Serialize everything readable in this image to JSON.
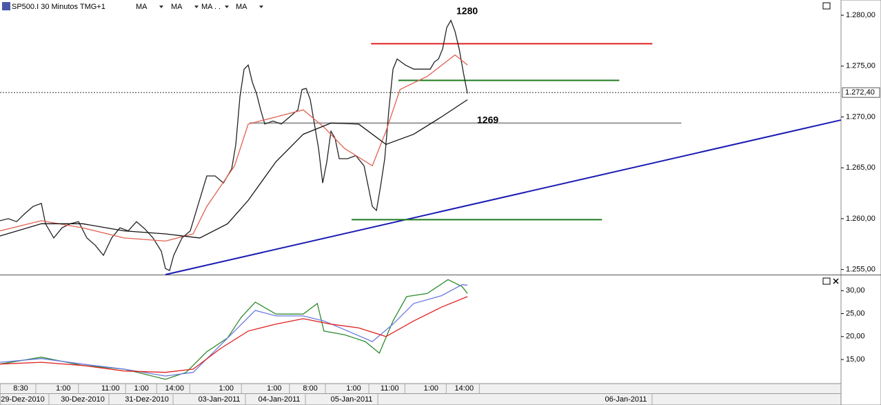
{
  "chart_data": [
    {
      "type": "line",
      "title": "SP500.I 30 Minutos TMG+1",
      "indicators": [
        {
          "name": "MA",
          "color": "#2a2ab8"
        },
        {
          "name": "MA",
          "color": "#e07040"
        },
        {
          "name": "MA . .",
          "color": "#d02020"
        },
        {
          "name": "MA",
          "color": "#000000"
        }
      ],
      "xlim": [
        0,
        203.3
      ],
      "ylim": [
        1254.5,
        1281.5
      ],
      "grid": false,
      "yticks": [
        {
          "value": 1255,
          "label": "1.255,00"
        },
        {
          "value": 1260,
          "label": "1.260,00"
        },
        {
          "value": 1265,
          "label": "1.265,00"
        },
        {
          "value": 1270,
          "label": "1.270,00"
        },
        {
          "value": 1275,
          "label": "1.275,00"
        },
        {
          "value": 1280,
          "label": "1.280,00"
        }
      ],
      "last_price": {
        "value": 1272.4,
        "label": "1.272,40"
      },
      "annotations": [
        1280,
        1269
      ],
      "series": [
        {
          "color": "#222222",
          "x": [
            0,
            2,
            4,
            6,
            8,
            10,
            11,
            13,
            15,
            17,
            19,
            21,
            23,
            25,
            27,
            29,
            31,
            33,
            35,
            37,
            39,
            40,
            41,
            42,
            44,
            46,
            48,
            50,
            52,
            54,
            56,
            57,
            58,
            59,
            60,
            61,
            62,
            63,
            64,
            66,
            68,
            70,
            72,
            73,
            74,
            75,
            76,
            77,
            78,
            79,
            80,
            81,
            82,
            84,
            86,
            88,
            89,
            90,
            91,
            92,
            93,
            94,
            95,
            96,
            97,
            98,
            100,
            102,
            104,
            105,
            106,
            107,
            108,
            109,
            110,
            111,
            112,
            113
          ],
          "values": [
            1259.8,
            1260.0,
            1259.7,
            1260.5,
            1261.2,
            1261.5,
            1259.5,
            1258.1,
            1259.1,
            1259.5,
            1259.7,
            1258.1,
            1257.4,
            1256.4,
            1258.1,
            1259.1,
            1258.8,
            1259.7,
            1259.0,
            1258.1,
            1256.8,
            1255.1,
            1254.9,
            1256.4,
            1258.1,
            1258.8,
            1261.5,
            1264.2,
            1264.2,
            1263.5,
            1264.9,
            1267.3,
            1272.0,
            1274.7,
            1275.1,
            1273.4,
            1272.3,
            1270.7,
            1269.3,
            1269.6,
            1269.3,
            1270.0,
            1270.7,
            1272.7,
            1272.8,
            1271.7,
            1269.3,
            1266.9,
            1263.5,
            1265.6,
            1268.6,
            1267.9,
            1265.9,
            1265.9,
            1266.2,
            1265.2,
            1263.2,
            1261.2,
            1260.8,
            1263.2,
            1265.9,
            1270.7,
            1274.7,
            1275.7,
            1275.4,
            1275.1,
            1274.7,
            1274.7,
            1274.7,
            1275.4,
            1275.7,
            1276.7,
            1278.8,
            1279.5,
            1278.4,
            1276.7,
            1274.4,
            1272.3
          ]
        },
        {
          "name": "MA",
          "color": "#e06050",
          "x": [
            0,
            10,
            20,
            30,
            40,
            46.7,
            50,
            56.7,
            60,
            66.7,
            73.3,
            78.3,
            83.3,
            90,
            93.3,
            96.7,
            103.3,
            110,
            113
          ],
          "values": [
            1258.8,
            1259.8,
            1259.1,
            1258.1,
            1257.8,
            1258.5,
            1261.2,
            1265.2,
            1269.3,
            1270.0,
            1270.7,
            1269.0,
            1266.9,
            1265.2,
            1268.6,
            1272.7,
            1274.0,
            1276.1,
            1275.1
          ]
        },
        {
          "name": "MA",
          "color": "#111111",
          "x": [
            0,
            10,
            20,
            30,
            40,
            48.3,
            55,
            60,
            66.7,
            73.3,
            80,
            86.7,
            93.3,
            100,
            106.7,
            113
          ],
          "values": [
            1258.3,
            1259.5,
            1259.5,
            1258.8,
            1258.5,
            1258.1,
            1259.5,
            1261.8,
            1265.6,
            1268.3,
            1269.4,
            1269.3,
            1267.3,
            1268.3,
            1270.0,
            1271.7
          ]
        }
      ],
      "levels": [
        {
          "value": 1277.2,
          "color": "#e02020",
          "x": [
            89.7,
            157.7
          ]
        },
        {
          "value": 1273.6,
          "color": "#1e7a1e",
          "x": [
            96.3,
            149.7
          ]
        },
        {
          "value": 1269.4,
          "color": "#999999",
          "x": [
            60.3,
            164.7
          ]
        },
        {
          "value": 1259.9,
          "color": "#1e7a1e",
          "x": [
            85,
            145.5
          ]
        }
      ],
      "trendline": {
        "x": [
          40,
          203.3
        ],
        "values": [
          1254.5,
          1269.7
        ],
        "color": "#1a1ab4"
      }
    },
    {
      "type": "line",
      "xlim": [
        0,
        203.3
      ],
      "ylim": [
        9.9,
        33.2
      ],
      "yticks": [
        {
          "value": 15,
          "label": "15,00"
        },
        {
          "value": 20,
          "label": "20,00"
        },
        {
          "value": 25,
          "label": "25,00"
        },
        {
          "value": 30,
          "label": "30,00"
        }
      ],
      "series": [
        {
          "color": "#2e8b2e",
          "x": [
            0,
            10,
            20,
            30,
            40,
            45,
            50,
            55,
            58.3,
            61.7,
            66.7,
            73.3,
            76.7,
            78.3,
            83.3,
            88.3,
            91.7,
            95,
            98.3,
            103.3,
            108.3,
            111.7,
            113
          ],
          "values": [
            14.0,
            15.5,
            13.7,
            12.9,
            10.7,
            12.2,
            16.7,
            19.7,
            24.2,
            27.5,
            24.9,
            24.9,
            27.2,
            21.2,
            20.4,
            18.9,
            16.4,
            23.4,
            28.7,
            29.4,
            32.4,
            30.9,
            29.4
          ]
        },
        {
          "color": "#6a7ae0",
          "x": [
            0,
            10,
            20,
            30,
            40,
            46.7,
            51.7,
            56.7,
            61.7,
            66.7,
            73.3,
            78.3,
            83.3,
            90,
            95,
            100,
            106.7,
            111.7,
            113
          ],
          "values": [
            14.4,
            15.2,
            14.0,
            12.9,
            11.4,
            12.2,
            16.7,
            21.2,
            25.7,
            24.5,
            24.5,
            23.4,
            21.5,
            18.9,
            22.7,
            27.2,
            28.9,
            31.3,
            31.2
          ]
        },
        {
          "color": "#e02020",
          "x": [
            0,
            10,
            20,
            30,
            40,
            46.7,
            53.3,
            60,
            66.7,
            73.3,
            80,
            86.7,
            93.3,
            100,
            106.7,
            113
          ],
          "values": [
            14.0,
            14.4,
            13.7,
            12.5,
            12.2,
            12.9,
            17.4,
            21.2,
            22.7,
            23.9,
            22.7,
            21.9,
            20.0,
            23.4,
            26.4,
            28.7
          ]
        }
      ],
      "xticks": [
        {
          "value": 5,
          "label": "8:30"
        },
        {
          "value": 15.3,
          "label": "1:00"
        },
        {
          "value": 26.7,
          "label": "11:00"
        },
        {
          "value": 34.2,
          "label": "1:00"
        },
        {
          "value": 42.2,
          "label": "14:00"
        },
        {
          "value": 54.7,
          "label": "1:00"
        },
        {
          "value": 66.3,
          "label": "1:00"
        },
        {
          "value": 75,
          "label": "8:00"
        },
        {
          "value": 85.5,
          "label": "1:00"
        },
        {
          "value": 94.2,
          "label": "11:00"
        },
        {
          "value": 104.2,
          "label": "1:00"
        },
        {
          "value": 112.2,
          "label": "14:00"
        }
      ],
      "dates": [
        {
          "value": 5.5,
          "label": "29-Dez-2010"
        },
        {
          "value": 20,
          "label": "30-Dez-2010"
        },
        {
          "value": 35.5,
          "label": "31-Dez-2010"
        },
        {
          "value": 53,
          "label": "03-Jan-2011"
        },
        {
          "value": 67.5,
          "label": "04-Jan-2011"
        },
        {
          "value": 85,
          "label": "05-Jan-2011"
        },
        {
          "value": 151.3,
          "label": "06-Jan-2011"
        }
      ]
    }
  ]
}
